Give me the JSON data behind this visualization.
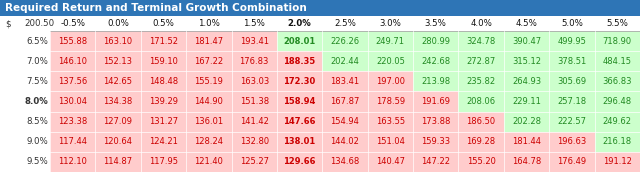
{
  "title": "Required Return and Terminal Growth Combination",
  "title_bg": "#2E75B6",
  "title_fg": "#FFFFFF",
  "col_headers": [
    "-0.5%",
    "0.0%",
    "0.5%",
    "1.0%",
    "1.5%",
    "2.0%",
    "2.5%",
    "3.0%",
    "3.5%",
    "4.0%",
    "4.5%",
    "5.0%",
    "5.5%"
  ],
  "row_headers": [
    "6.5%",
    "7.0%",
    "7.5%",
    "8.0%",
    "8.5%",
    "9.0%",
    "9.5%"
  ],
  "values": [
    [
      155.88,
      163.1,
      171.52,
      181.47,
      193.41,
      208.01,
      226.26,
      249.71,
      280.99,
      324.78,
      390.47,
      499.95,
      718.9
    ],
    [
      146.1,
      152.13,
      159.1,
      167.22,
      176.83,
      188.35,
      202.44,
      220.05,
      242.68,
      272.87,
      315.12,
      378.51,
      484.15
    ],
    [
      137.56,
      142.65,
      148.48,
      155.19,
      163.03,
      172.3,
      183.41,
      197.0,
      213.98,
      235.82,
      264.93,
      305.69,
      366.83
    ],
    [
      130.04,
      134.38,
      139.29,
      144.9,
      151.38,
      158.94,
      167.87,
      178.59,
      191.69,
      208.06,
      229.11,
      257.18,
      296.48
    ],
    [
      123.38,
      127.09,
      131.27,
      136.01,
      141.42,
      147.66,
      154.94,
      163.55,
      173.88,
      186.5,
      202.28,
      222.57,
      249.62
    ],
    [
      117.44,
      120.64,
      124.21,
      128.24,
      132.8,
      138.01,
      144.02,
      151.04,
      159.33,
      169.28,
      181.44,
      196.63,
      216.18
    ],
    [
      112.1,
      114.87,
      117.95,
      121.4,
      125.27,
      129.66,
      134.68,
      140.47,
      147.22,
      155.2,
      164.78,
      176.49,
      191.12
    ]
  ],
  "current_price": 200.5,
  "red_bg": "#FFCCCC",
  "green_bg": "#CCFFCC",
  "red_text": "#CC0000",
  "green_text": "#228B22",
  "highlight_col": 5,
  "title_fontsize": 7.5,
  "header_fontsize": 6.2,
  "cell_fontsize": 6.0,
  "row_label_fontsize": 6.2,
  "price_label": "200.50",
  "dollar_label": "$"
}
